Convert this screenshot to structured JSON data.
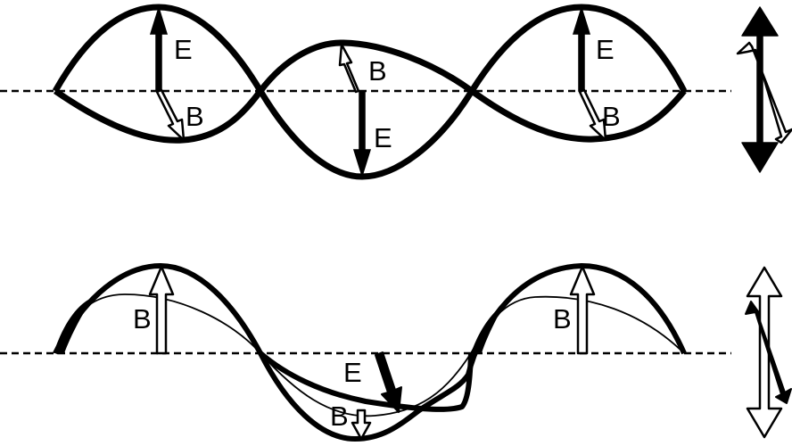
{
  "panels": {
    "top": {
      "labels": {
        "e_left": "E",
        "b_left": "B",
        "b_center": "B",
        "e_center": "E",
        "e_right": "E",
        "b_right": "B"
      }
    },
    "bottom": {
      "labels": {
        "b_left": "B",
        "e_center": "E",
        "b_center": "B",
        "b_right": "B"
      }
    }
  },
  "colors": {
    "stroke": "#000000",
    "background": "#ffffff",
    "open_arrow_fill": "#ffffff",
    "solid_arrow_fill": "#000000"
  }
}
